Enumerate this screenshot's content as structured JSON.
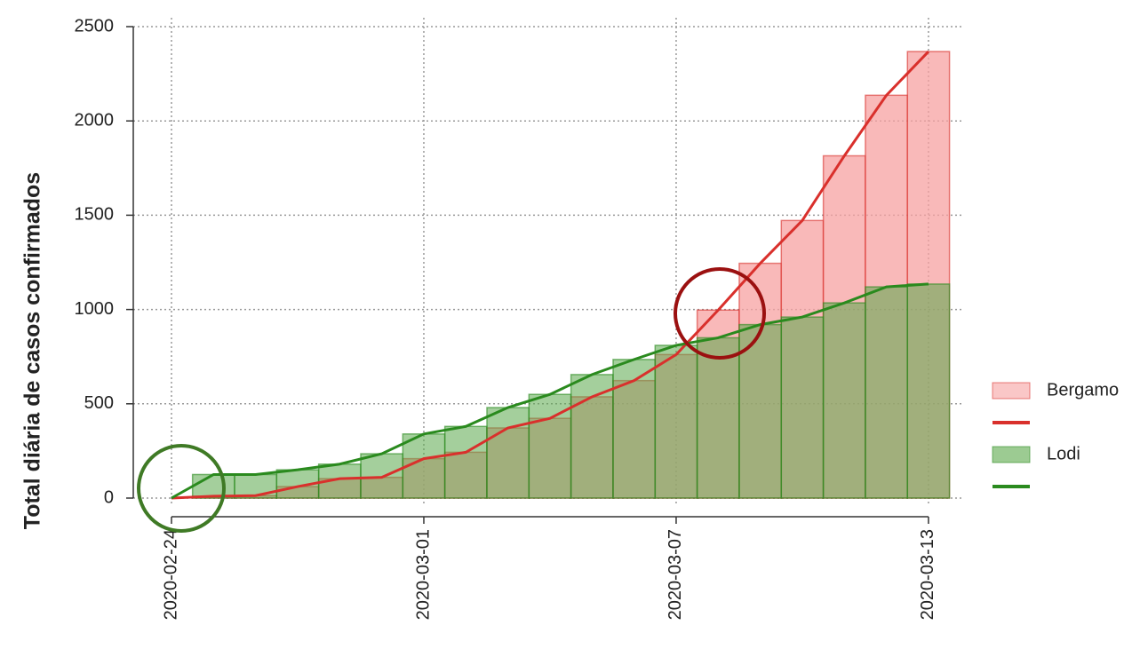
{
  "chart_data": {
    "type": "bar_line",
    "y_label": "Total diária de casos confirmados",
    "categories": [
      "2020-02-24",
      null,
      null,
      null,
      null,
      null,
      "2020-03-01",
      null,
      null,
      null,
      null,
      null,
      "2020-03-07",
      null,
      null,
      null,
      null,
      null,
      "2020-03-13"
    ],
    "series": [
      {
        "name": "Bergamo",
        "color": "#d9302c",
        "fill": "#f7a1a1",
        "values": [
          0,
          10,
          13,
          61,
          103,
          110,
          209,
          243,
          372,
          423,
          537,
          623,
          761,
          997,
          1245,
          1472,
          1815,
          2136,
          2368
        ]
      },
      {
        "name": "Lodi",
        "color": "#2a8a1e",
        "fill": "#5aa84a",
        "values": [
          0,
          125,
          125,
          150,
          180,
          235,
          340,
          380,
          480,
          550,
          655,
          735,
          810,
          850,
          920,
          960,
          1035,
          1120,
          1135
        ]
      }
    ],
    "ylim": [
      0,
      2500
    ],
    "yticks": [
      0,
      500,
      1000,
      1500,
      2000,
      2500
    ],
    "grid": true
  }
}
